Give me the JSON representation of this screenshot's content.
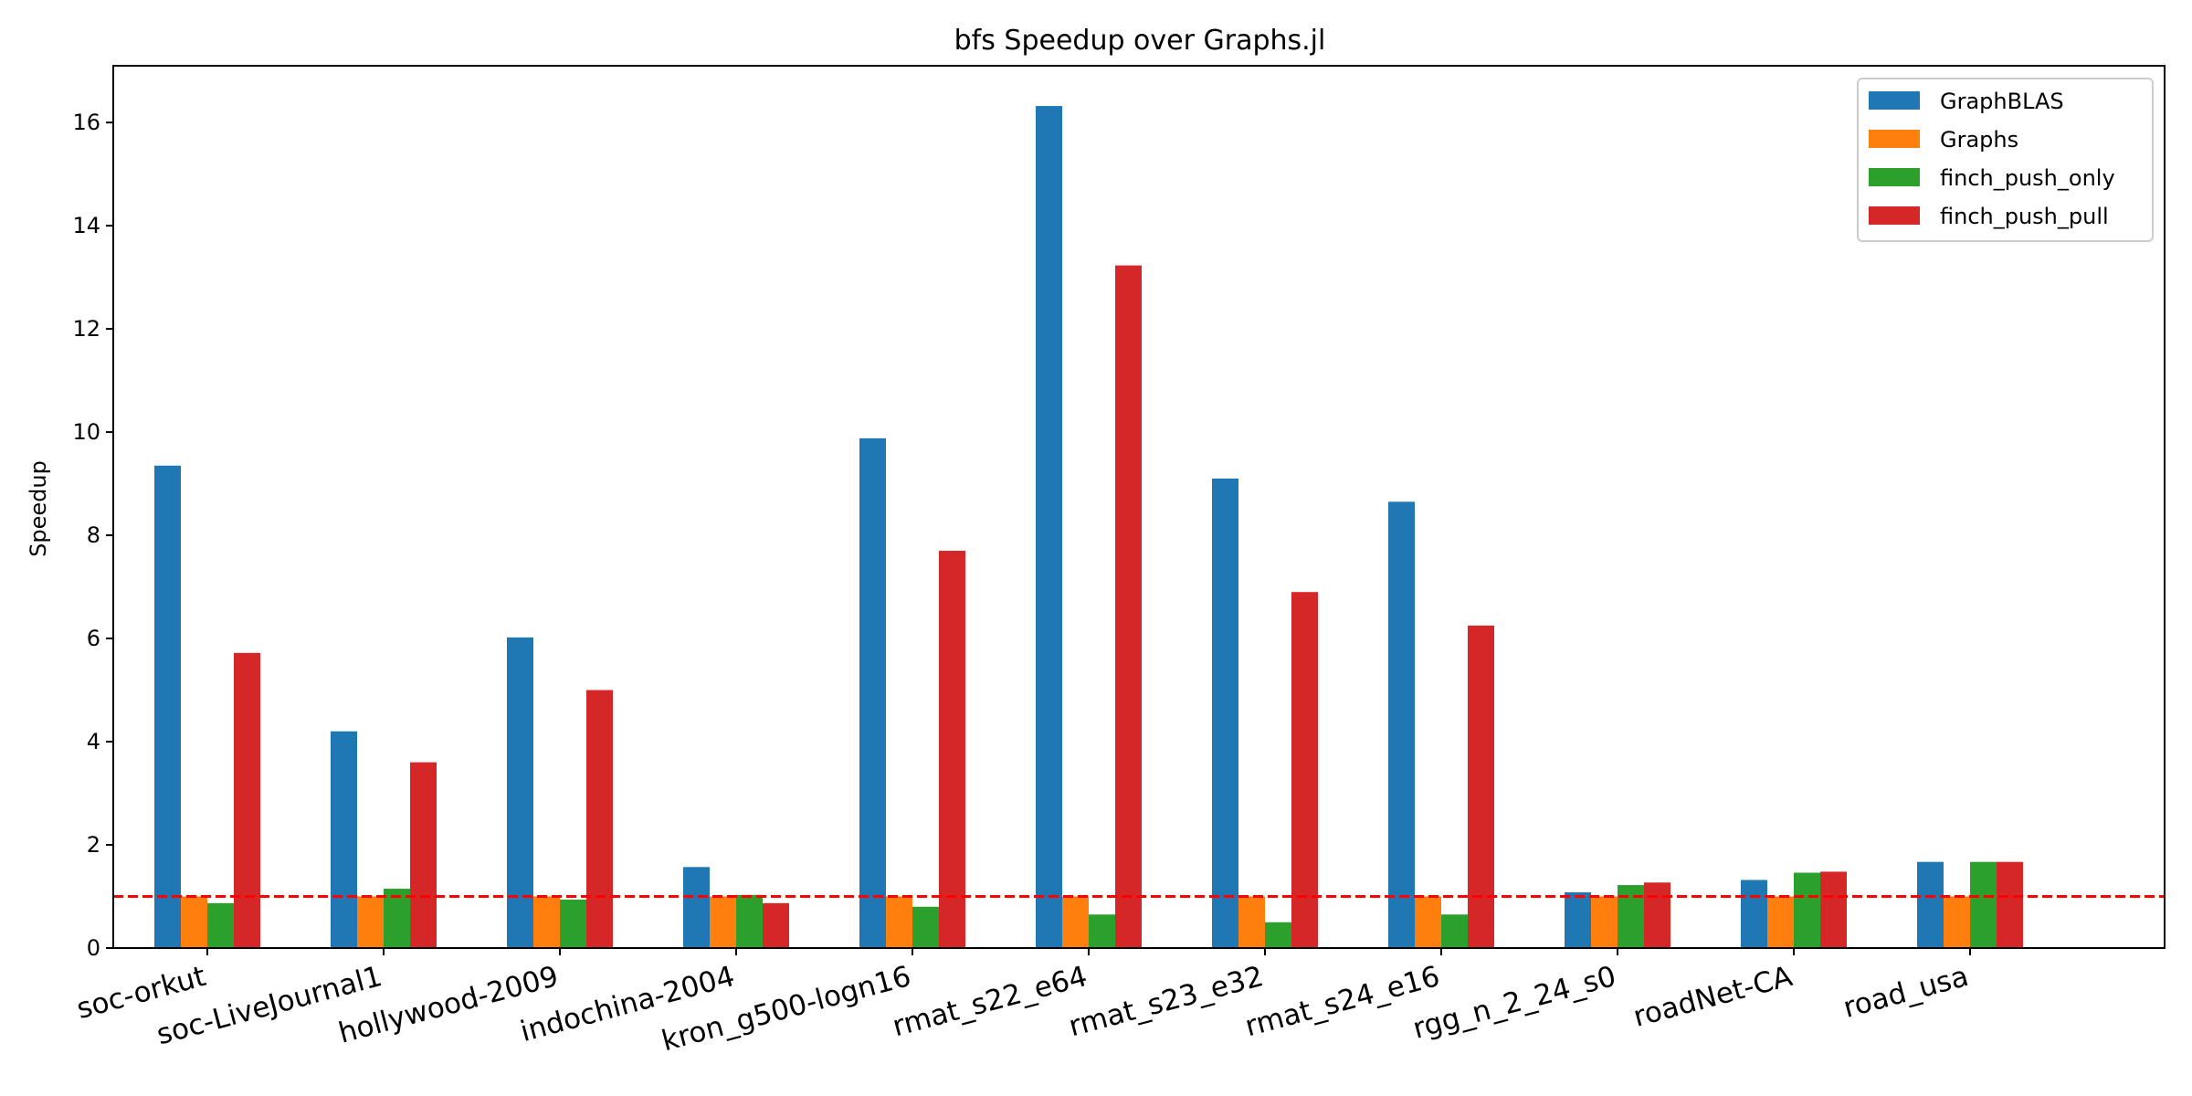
{
  "chart_data": {
    "type": "bar",
    "title": "bfs Speedup over Graphs.jl",
    "xlabel": "",
    "ylabel": "Speedup",
    "ylim": [
      0,
      17.1
    ],
    "yticks": [
      "0",
      "2",
      "4",
      "6",
      "8",
      "10",
      "12",
      "14",
      "16"
    ],
    "grid": false,
    "legend_position": "top-right",
    "categories": [
      "soc-orkut",
      "soc-LiveJournal1",
      "hollywood-2009",
      "indochina-2004",
      "kron_g500-logn16",
      "rmat_s22_e64",
      "rmat_s23_e32",
      "rmat_s24_e16",
      "rgg_n_2_24_s0",
      "roadNet-CA",
      "road_usa"
    ],
    "series": [
      {
        "name": "GraphBLAS",
        "color": "#1f77b4",
        "values": [
          9.35,
          4.2,
          6.02,
          1.57,
          9.88,
          16.32,
          9.1,
          8.65,
          1.08,
          1.32,
          1.67
        ]
      },
      {
        "name": "Graphs",
        "color": "#ff7f0e",
        "values": [
          1.0,
          1.0,
          1.0,
          1.0,
          1.0,
          1.0,
          1.0,
          1.0,
          1.0,
          1.0,
          1.0
        ]
      },
      {
        "name": "finch_push_only",
        "color": "#2ca02c",
        "values": [
          0.87,
          1.15,
          0.94,
          1.03,
          0.8,
          0.65,
          0.5,
          0.65,
          1.22,
          1.46,
          1.67
        ]
      },
      {
        "name": "finch_push_pull",
        "color": "#d62728",
        "values": [
          5.72,
          3.6,
          5.0,
          0.87,
          7.7,
          13.23,
          6.9,
          6.25,
          1.27,
          1.48,
          1.67
        ]
      }
    ],
    "reference_line": {
      "y": 1.0,
      "style": "dashed",
      "color": "#ff0000"
    }
  }
}
